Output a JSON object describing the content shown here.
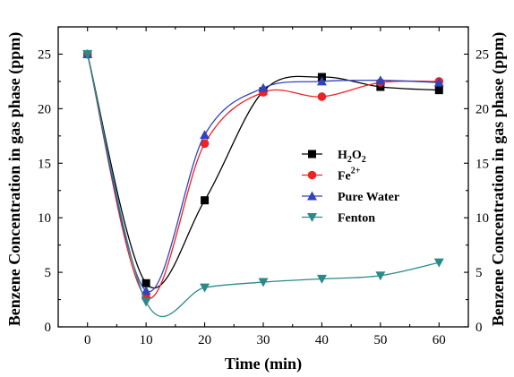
{
  "chart_data": {
    "type": "line",
    "xlabel": "Time (min)",
    "ylabel_left": "Benzene Concentration in gas phase (ppm)",
    "ylabel_right": "Benzene Concentration in gas phase (ppm)",
    "xlim": [
      -5,
      65
    ],
    "ylim": [
      0,
      27.5
    ],
    "xticks": [
      0,
      10,
      20,
      30,
      40,
      50,
      60
    ],
    "yticks": [
      0,
      5,
      10,
      15,
      20,
      25
    ],
    "x_tick_labels": [
      "0",
      "10",
      "20",
      "30",
      "40",
      "50",
      "60"
    ],
    "y_tick_labels": [
      "0",
      "5",
      "10",
      "15",
      "20",
      "25"
    ],
    "legend_position": "center-right",
    "series": [
      {
        "name": "H2O2",
        "legend_base": "H",
        "legend_sub1": "2",
        "legend_mid": "O",
        "legend_sub2": "2",
        "color": "#000000",
        "marker": "square",
        "x": [
          0,
          10,
          20,
          30,
          40,
          50,
          60
        ],
        "y": [
          25,
          4.0,
          11.6,
          21.6,
          22.9,
          22.0,
          21.7
        ]
      },
      {
        "name": "Fe2+",
        "legend_base": "Fe",
        "legend_sup": "2+",
        "color": "#ee2222",
        "marker": "circle",
        "x": [
          0,
          10,
          20,
          30,
          40,
          50,
          60
        ],
        "y": [
          25,
          2.7,
          16.8,
          21.5,
          21.1,
          22.4,
          22.5
        ]
      },
      {
        "name": "Pure Water",
        "color": "#3344bb",
        "marker": "triangle-up",
        "x": [
          0,
          10,
          20,
          30,
          40,
          50,
          60
        ],
        "y": [
          25,
          3.3,
          17.6,
          21.9,
          22.5,
          22.6,
          22.4
        ]
      },
      {
        "name": "Fenton",
        "color": "#2a8a8a",
        "marker": "triangle-down",
        "x": [
          0,
          10,
          20,
          30,
          40,
          50,
          60
        ],
        "y": [
          25,
          2.3,
          3.6,
          4.1,
          4.4,
          4.7,
          5.9
        ]
      }
    ]
  }
}
